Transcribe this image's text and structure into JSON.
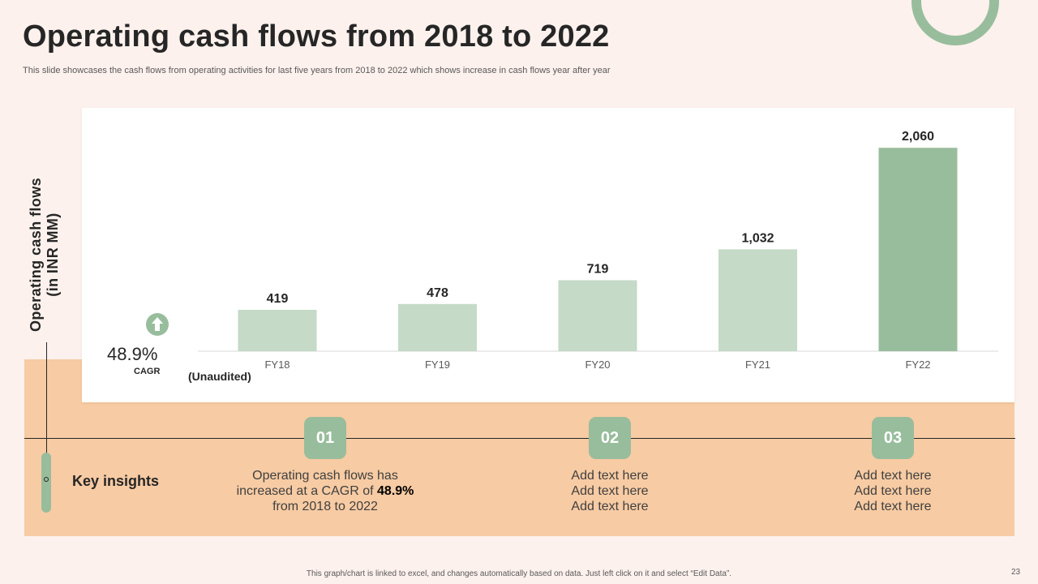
{
  "header": {
    "title": "Operating cash flows from 2018 to 2022",
    "subtitle": "This slide showcases the cash flows from operating activities for last five years from 2018 to  2022 which shows increase in cash flows year after year"
  },
  "chart_data": {
    "type": "bar",
    "title": "",
    "ylabel": "Operating cash flows (in INR MM)",
    "ylabel_lines": [
      "Operating cash flows",
      "(in INR MM)"
    ],
    "xlabel": "",
    "categories": [
      "FY18",
      "FY19",
      "FY20",
      "FY21",
      "FY22"
    ],
    "values": [
      419,
      478,
      719,
      1032,
      2060
    ],
    "value_labels": [
      "419",
      "478",
      "719",
      "1,032",
      "2,060"
    ],
    "ylim": [
      0,
      2300
    ],
    "grid": false,
    "note": "(Unaudited)",
    "colors": {
      "regular": "#c5dac7",
      "highlight": "#98bd9c",
      "axis": "#d9d9d9"
    },
    "highlight_index": 4
  },
  "cagr": {
    "value": "48.9%",
    "label": "CAGR"
  },
  "insights": {
    "heading": "Key insights",
    "items": [
      {
        "number": "01",
        "line1": "Operating cash flows has",
        "line2_prefix": "increased at a CAGR of ",
        "line2_bold": "48.9%",
        "line3": "from 2018 to 2022"
      },
      {
        "number": "02",
        "line1": "Add text here",
        "line2": "Add text here",
        "line3": "Add text here"
      },
      {
        "number": "03",
        "line1": "Add text here",
        "line2": "Add text here",
        "line3": "Add text here"
      }
    ]
  },
  "footer": {
    "note": "This graph/chart is linked to excel, and changes automatically based on data. Just left click on it and select “Edit Data”.",
    "page_number": "23"
  },
  "colors": {
    "accent_green": "#98bd9c",
    "light_green": "#c5dac7",
    "peach": "#f7cba3",
    "background": "#fcf1ed"
  }
}
